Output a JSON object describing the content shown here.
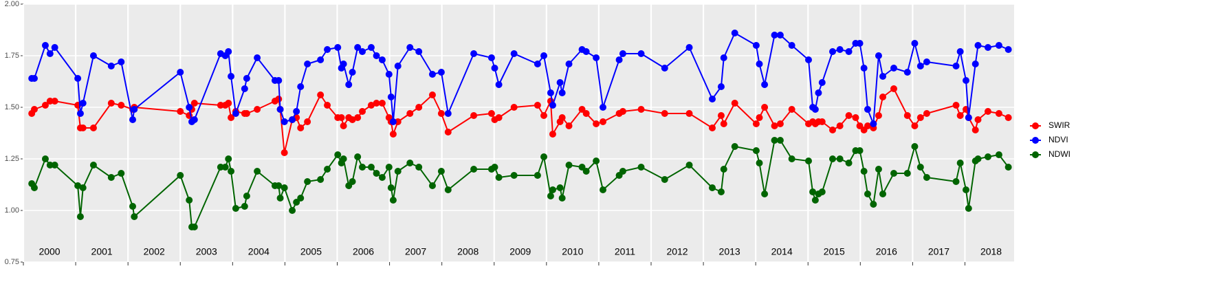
{
  "chart_data": {
    "type": "line",
    "x": [
      2000.16,
      2000.21,
      2000.42,
      2000.51,
      2000.6,
      2001.04,
      2001.09,
      2001.14,
      2001.34,
      2001.68,
      2001.87,
      2002.09,
      2002.12,
      2003.0,
      2003.17,
      2003.22,
      2003.27,
      2003.77,
      2003.86,
      2003.92,
      2003.97,
      2004.06,
      2004.23,
      2004.27,
      2004.47,
      2004.81,
      2004.88,
      2004.91,
      2004.99,
      2005.14,
      2005.22,
      2005.3,
      2005.43,
      2005.68,
      2005.81,
      2006.01,
      2006.08,
      2006.12,
      2006.22,
      2006.29,
      2006.39,
      2006.48,
      2006.65,
      2006.75,
      2006.86,
      2006.99,
      2007.03,
      2007.07,
      2007.16,
      2007.39,
      2007.56,
      2007.82,
      2007.99,
      2008.12,
      2008.61,
      2008.95,
      2009.01,
      2009.09,
      2009.38,
      2009.83,
      2009.95,
      2010.08,
      2010.12,
      2010.26,
      2010.3,
      2010.43,
      2010.68,
      2010.76,
      2010.95,
      2011.08,
      2011.39,
      2011.46,
      2011.81,
      2012.26,
      2012.73,
      2013.17,
      2013.34,
      2013.39,
      2013.6,
      2014.01,
      2014.07,
      2014.17,
      2014.36,
      2014.47,
      2014.69,
      2015.01,
      2015.09,
      2015.14,
      2015.2,
      2015.27,
      2015.47,
      2015.61,
      2015.78,
      2015.91,
      2015.99,
      2016.07,
      2016.14,
      2016.25,
      2016.35,
      2016.43,
      2016.64,
      2016.9,
      2017.04,
      2017.15,
      2017.27,
      2017.83,
      2017.91,
      2018.02,
      2018.07,
      2018.2,
      2018.25,
      2018.44,
      2018.65,
      2018.83
    ],
    "series": [
      {
        "name": "SWIR",
        "color": "#ff0000",
        "values": [
          1.47,
          1.49,
          1.51,
          1.53,
          1.53,
          1.51,
          1.4,
          1.4,
          1.4,
          1.52,
          1.51,
          1.49,
          1.5,
          1.48,
          1.46,
          1.49,
          1.52,
          1.51,
          1.51,
          1.52,
          1.45,
          1.48,
          1.47,
          1.47,
          1.49,
          1.53,
          1.54,
          1.49,
          1.28,
          1.44,
          1.45,
          1.4,
          1.43,
          1.56,
          1.51,
          1.45,
          1.45,
          1.41,
          1.45,
          1.44,
          1.45,
          1.48,
          1.51,
          1.52,
          1.52,
          1.45,
          1.43,
          1.37,
          1.43,
          1.47,
          1.5,
          1.56,
          1.47,
          1.38,
          1.46,
          1.47,
          1.44,
          1.45,
          1.5,
          1.51,
          1.46,
          1.53,
          1.37,
          1.43,
          1.45,
          1.41,
          1.49,
          1.47,
          1.42,
          1.43,
          1.47,
          1.48,
          1.49,
          1.47,
          1.47,
          1.4,
          1.46,
          1.42,
          1.52,
          1.42,
          1.45,
          1.5,
          1.41,
          1.42,
          1.49,
          1.42,
          1.43,
          1.42,
          1.43,
          1.43,
          1.39,
          1.41,
          1.46,
          1.45,
          1.41,
          1.39,
          1.41,
          1.4,
          1.46,
          1.55,
          1.59,
          1.46,
          1.41,
          1.45,
          1.47,
          1.51,
          1.46,
          1.49,
          1.45,
          1.39,
          1.44,
          1.48,
          1.47,
          1.45
        ]
      },
      {
        "name": "NDVI",
        "color": "#0000ff",
        "values": [
          1.64,
          1.64,
          1.8,
          1.76,
          1.79,
          1.64,
          1.47,
          1.52,
          1.75,
          1.7,
          1.72,
          1.44,
          1.49,
          1.67,
          1.5,
          1.43,
          1.44,
          1.76,
          1.75,
          1.77,
          1.65,
          1.47,
          1.59,
          1.64,
          1.74,
          1.63,
          1.63,
          1.49,
          1.43,
          1.44,
          1.48,
          1.6,
          1.71,
          1.73,
          1.78,
          1.79,
          1.69,
          1.71,
          1.61,
          1.67,
          1.79,
          1.77,
          1.79,
          1.75,
          1.73,
          1.66,
          1.55,
          1.43,
          1.7,
          1.79,
          1.77,
          1.66,
          1.67,
          1.47,
          1.76,
          1.74,
          1.69,
          1.61,
          1.76,
          1.71,
          1.75,
          1.57,
          1.51,
          1.62,
          1.57,
          1.71,
          1.78,
          1.77,
          1.74,
          1.5,
          1.73,
          1.76,
          1.76,
          1.69,
          1.79,
          1.54,
          1.6,
          1.74,
          1.86,
          1.8,
          1.71,
          1.61,
          1.85,
          1.85,
          1.8,
          1.73,
          1.5,
          1.49,
          1.57,
          1.62,
          1.77,
          1.78,
          1.77,
          1.81,
          1.81,
          1.69,
          1.49,
          1.42,
          1.75,
          1.65,
          1.69,
          1.67,
          1.81,
          1.7,
          1.72,
          1.7,
          1.77,
          1.63,
          1.45,
          1.71,
          1.8,
          1.79,
          1.8,
          1.78
        ]
      },
      {
        "name": "NDWI",
        "color": "#006400",
        "values": [
          1.13,
          1.11,
          1.25,
          1.22,
          1.22,
          1.12,
          0.97,
          1.11,
          1.22,
          1.16,
          1.18,
          1.02,
          0.97,
          1.17,
          1.05,
          0.92,
          0.92,
          1.21,
          1.21,
          1.25,
          1.19,
          1.01,
          1.02,
          1.07,
          1.19,
          1.12,
          1.12,
          1.06,
          1.11,
          1.0,
          1.04,
          1.06,
          1.14,
          1.15,
          1.2,
          1.27,
          1.23,
          1.25,
          1.12,
          1.14,
          1.26,
          1.21,
          1.21,
          1.18,
          1.16,
          1.21,
          1.11,
          1.05,
          1.19,
          1.23,
          1.21,
          1.12,
          1.19,
          1.1,
          1.2,
          1.2,
          1.21,
          1.16,
          1.17,
          1.17,
          1.26,
          1.07,
          1.1,
          1.11,
          1.06,
          1.22,
          1.21,
          1.19,
          1.24,
          1.1,
          1.17,
          1.19,
          1.21,
          1.15,
          1.22,
          1.11,
          1.09,
          1.2,
          1.31,
          1.29,
          1.23,
          1.08,
          1.34,
          1.34,
          1.25,
          1.24,
          1.09,
          1.05,
          1.08,
          1.09,
          1.25,
          1.25,
          1.23,
          1.29,
          1.29,
          1.19,
          1.08,
          1.03,
          1.2,
          1.08,
          1.18,
          1.18,
          1.31,
          1.21,
          1.16,
          1.14,
          1.23,
          1.1,
          1.01,
          1.24,
          1.25,
          1.26,
          1.27,
          1.21
        ]
      }
    ],
    "xlim": [
      2000,
      2018.94
    ],
    "xticks": [
      2000,
      2001,
      2002,
      2003,
      2004,
      2005,
      2006,
      2007,
      2008,
      2009,
      2010,
      2011,
      2012,
      2013,
      2014,
      2015,
      2016,
      2017,
      2018
    ],
    "ylim": [
      0.75,
      2.0
    ],
    "yticks": [
      {
        "value": 0.75,
        "label": "0.75"
      },
      {
        "value": 1.0,
        "label": "1.00"
      },
      {
        "value": 1.25,
        "label": "1.25"
      },
      {
        "value": 1.5,
        "label": "1.50"
      },
      {
        "value": 1.75,
        "label": "1.75"
      },
      {
        "value": 2.0,
        "label": "2.00"
      }
    ],
    "grid": true,
    "legend": "right"
  }
}
